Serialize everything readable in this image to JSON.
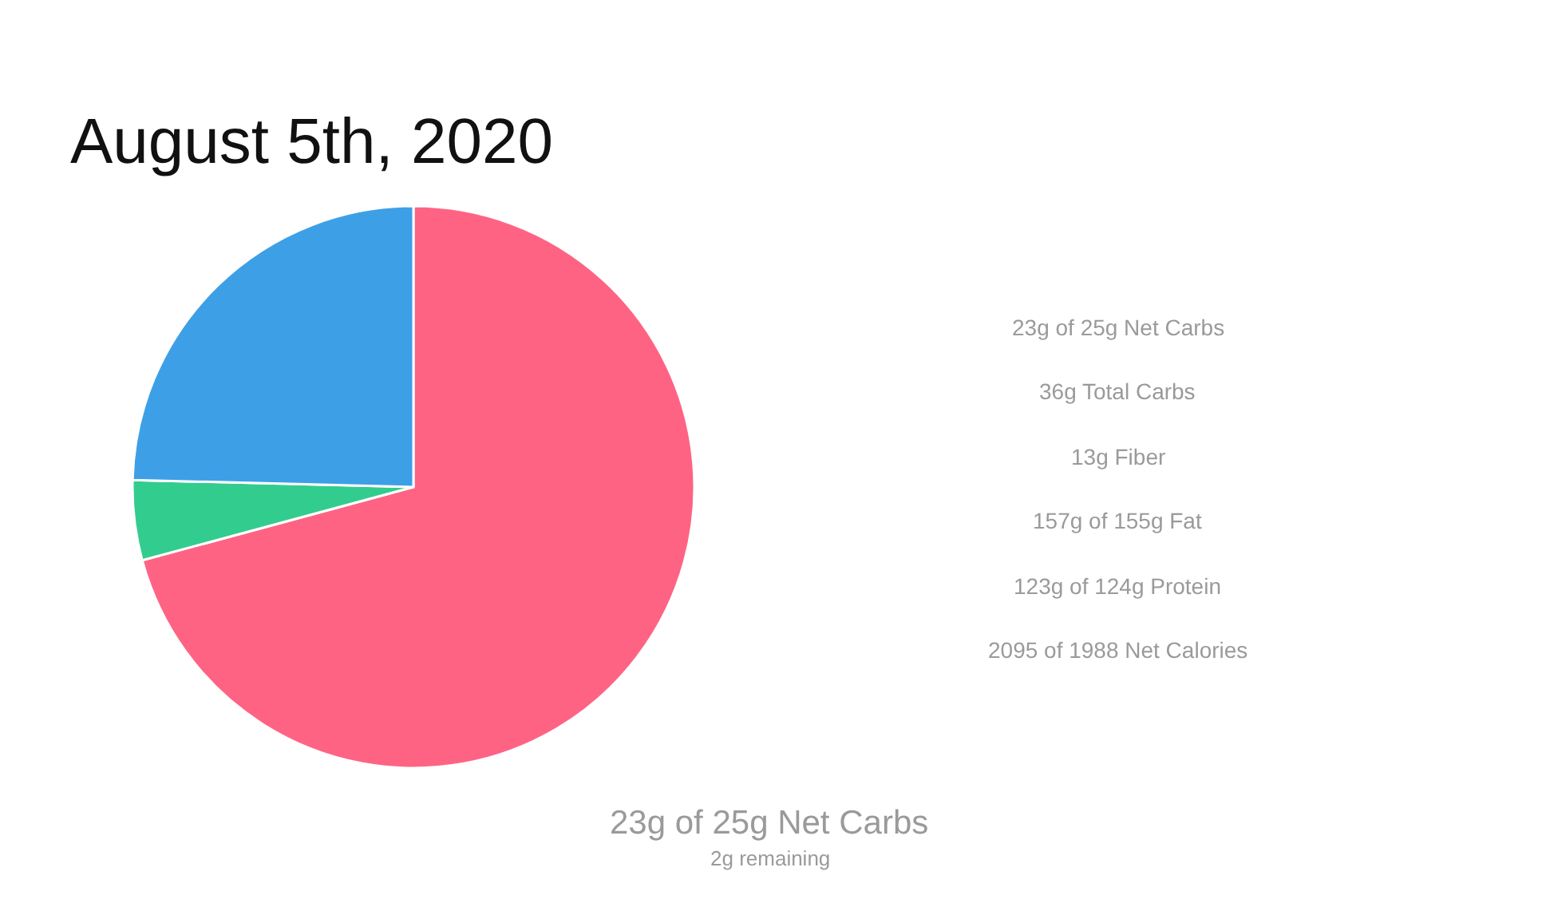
{
  "chart_data": {
    "type": "pie",
    "title": "August 5th, 2020",
    "categories": [
      null,
      null,
      null
    ],
    "values": [
      70.8,
      4.6,
      24.6
    ],
    "colors": [
      "#ff6384",
      "#33cc8f",
      "#3da0e6"
    ],
    "legend": false,
    "annotations": [
      "23g of 25g Net Carbs",
      "36g Total Carbs",
      "13g Fiber",
      "157g of 155g Fat",
      "123g of 124g Protein",
      "2095 of 1988 Net Calories",
      "23g of 25g Net Carbs",
      "2g remaining"
    ]
  }
}
